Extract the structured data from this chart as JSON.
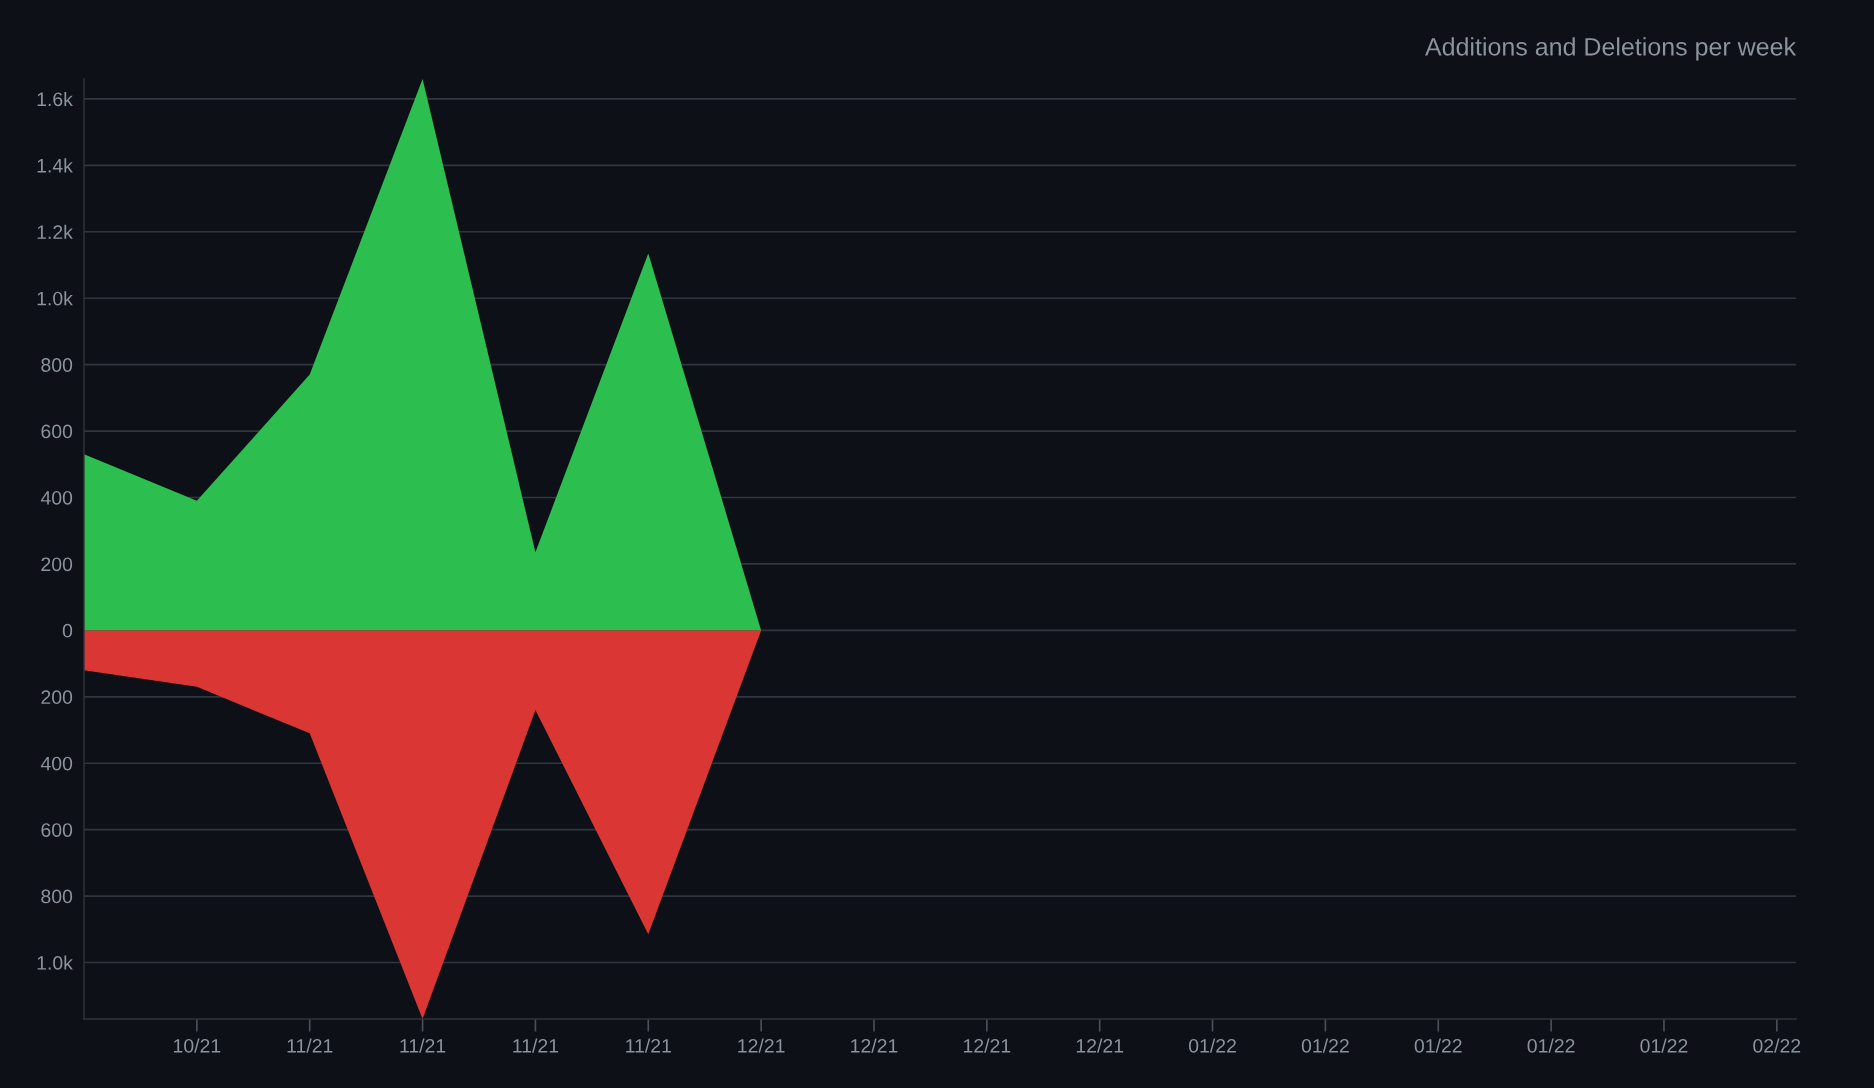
{
  "chart_data": {
    "type": "area",
    "title": "Additions and Deletions per week",
    "categories": [
      null,
      "10/21",
      "11/21",
      "11/21",
      "11/21",
      "11/21",
      "12/21",
      "12/21",
      "12/21",
      "12/21",
      "01/22",
      "01/22",
      "01/22",
      "01/22",
      "01/22",
      "02/22"
    ],
    "series": [
      {
        "color": "#2cbe4e",
        "values": [
          530,
          390,
          770,
          1660,
          235,
          1135,
          0,
          null,
          null,
          null,
          null,
          null,
          null,
          null,
          null,
          null
        ]
      },
      {
        "color": "#da3633",
        "values": [
          -120,
          -170,
          -310,
          -1170,
          -240,
          -915,
          0,
          null,
          null,
          null,
          null,
          null,
          null,
          null,
          null,
          null
        ]
      }
    ],
    "ylim": [
      -1170,
      1660
    ],
    "yticks": [
      {
        "value": 1600,
        "label": "1.6k"
      },
      {
        "value": 1400,
        "label": "1.4k"
      },
      {
        "value": 1200,
        "label": "1.2k"
      },
      {
        "value": 1000,
        "label": "1.0k"
      },
      800,
      600,
      400,
      200,
      0,
      {
        "value": -200,
        "label": "200"
      },
      {
        "value": -400,
        "label": "400"
      },
      {
        "value": -600,
        "label": "600"
      },
      {
        "value": -800,
        "label": "800"
      },
      {
        "value": -1000,
        "label": "1.0k"
      }
    ],
    "grid": "y"
  }
}
